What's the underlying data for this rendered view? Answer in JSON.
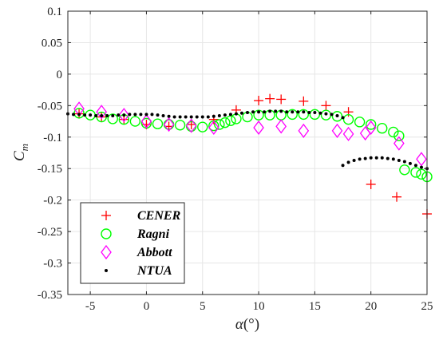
{
  "chart_data": {
    "type": "scatter",
    "xlabel_main": "α",
    "xlabel_unit": "(°)",
    "ylabel_main": "C",
    "ylabel_sub": "m",
    "xlim": [
      -7,
      25
    ],
    "ylim": [
      -0.35,
      0.1
    ],
    "xticks": [
      -5,
      0,
      5,
      10,
      15,
      20,
      25
    ],
    "yticks": [
      -0.35,
      -0.3,
      -0.25,
      -0.2,
      -0.15,
      -0.1,
      -0.05,
      0,
      0.05,
      0.1
    ],
    "xtick_labels": [
      "-5",
      "0",
      "5",
      "10",
      "15",
      "20",
      "25"
    ],
    "ytick_labels": [
      "-0.35",
      "-0.3",
      "-0.25",
      "-0.2",
      "-0.15",
      "-0.1",
      "-0.05",
      "0",
      "0.05",
      "0.1"
    ],
    "grid": true,
    "legend_position": "bottom-left",
    "series": [
      {
        "name": "CENER",
        "marker": "plus",
        "color": "#ff0000",
        "x": [
          -6,
          -4,
          -2,
          0,
          2,
          4,
          6,
          8,
          10,
          11,
          12,
          14,
          16,
          18,
          20,
          22.3,
          25
        ],
        "y": [
          -0.063,
          -0.068,
          -0.072,
          -0.08,
          -0.083,
          -0.08,
          -0.072,
          -0.057,
          -0.042,
          -0.039,
          -0.04,
          -0.043,
          -0.05,
          -0.06,
          -0.175,
          -0.195,
          -0.222
        ]
      },
      {
        "name": "Ragni",
        "marker": "circle",
        "color": "#00ff00",
        "x": [
          -6,
          -5,
          -4,
          -3,
          -2,
          -1,
          0,
          1,
          2,
          3,
          4,
          5,
          6,
          6.5,
          7,
          7.5,
          8,
          9,
          10,
          11,
          12,
          13,
          14,
          15,
          16,
          17,
          18,
          19,
          20,
          21,
          22,
          22.5,
          23,
          24,
          24.5,
          25
        ],
        "y": [
          -0.062,
          -0.065,
          -0.068,
          -0.071,
          -0.072,
          -0.075,
          -0.078,
          -0.079,
          -0.08,
          -0.081,
          -0.083,
          -0.084,
          -0.082,
          -0.08,
          -0.077,
          -0.074,
          -0.071,
          -0.068,
          -0.065,
          -0.065,
          -0.065,
          -0.064,
          -0.064,
          -0.064,
          -0.065,
          -0.067,
          -0.072,
          -0.076,
          -0.08,
          -0.086,
          -0.092,
          -0.098,
          -0.152,
          -0.156,
          -0.159,
          -0.163
        ]
      },
      {
        "name": "Abbott",
        "marker": "diamond",
        "color": "#ff00ff",
        "x": [
          -6,
          -4,
          -2,
          0,
          2,
          4,
          6,
          10,
          12,
          14,
          17,
          18,
          19.5,
          20,
          22.5,
          24.5
        ],
        "y": [
          -0.055,
          -0.06,
          -0.065,
          -0.075,
          -0.08,
          -0.082,
          -0.085,
          -0.085,
          -0.083,
          -0.09,
          -0.09,
          -0.095,
          -0.094,
          -0.085,
          -0.11,
          -0.135
        ]
      },
      {
        "name": "NTUA",
        "marker": "dot",
        "color": "#000000",
        "x": [
          -7,
          -6.5,
          -6,
          -5.5,
          -5,
          -4.5,
          -4,
          -3.5,
          -3,
          -2.5,
          -2,
          -1.5,
          -1,
          -0.5,
          0,
          0.5,
          1,
          1.5,
          2,
          2.5,
          3,
          3.5,
          4,
          4.5,
          5,
          5.5,
          6,
          6.5,
          7,
          7.5,
          8,
          8.5,
          9,
          9.5,
          10,
          10.5,
          11,
          11.5,
          12,
          12.5,
          13,
          13.5,
          14,
          14.5,
          15,
          15.5,
          16,
          16.5,
          17,
          17.5,
          17.5,
          18,
          18.5,
          19,
          19.5,
          20,
          20.5,
          21,
          21.5,
          22,
          22.5,
          23,
          23.5,
          24,
          24.5,
          25
        ],
        "y": [
          -0.063,
          -0.064,
          -0.064,
          -0.065,
          -0.065,
          -0.066,
          -0.066,
          -0.066,
          -0.066,
          -0.065,
          -0.065,
          -0.064,
          -0.064,
          -0.064,
          -0.064,
          -0.064,
          -0.065,
          -0.066,
          -0.067,
          -0.068,
          -0.068,
          -0.068,
          -0.068,
          -0.068,
          -0.068,
          -0.068,
          -0.067,
          -0.066,
          -0.065,
          -0.064,
          -0.063,
          -0.062,
          -0.061,
          -0.06,
          -0.06,
          -0.06,
          -0.059,
          -0.059,
          -0.059,
          -0.06,
          -0.06,
          -0.06,
          -0.06,
          -0.061,
          -0.061,
          -0.062,
          -0.063,
          -0.064,
          -0.066,
          -0.069,
          -0.145,
          -0.14,
          -0.137,
          -0.135,
          -0.134,
          -0.133,
          -0.133,
          -0.133,
          -0.134,
          -0.135,
          -0.137,
          -0.139,
          -0.142,
          -0.145,
          -0.148,
          -0.15
        ]
      }
    ]
  }
}
